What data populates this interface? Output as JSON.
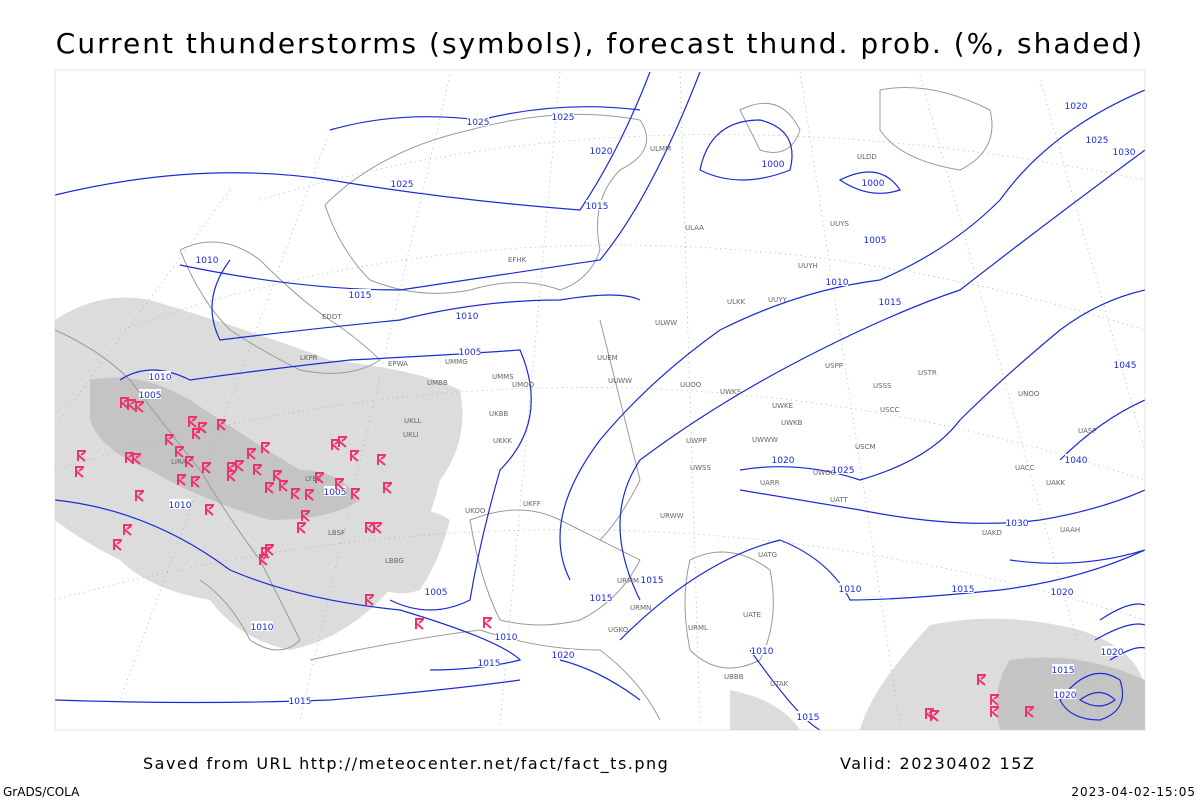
{
  "header": {
    "title": "Current thunderstorms (symbols), forecast thund. prob. (%, shaded)"
  },
  "footer": {
    "source": "Saved from URL http://meteocenter.net/fact/fact_ts.png",
    "valid": "Valid: 20230402 15Z",
    "software": "GrADS/COLA",
    "timestamp": "2023-04-02-15:05"
  },
  "isobar_labels": [
    "1025",
    "1025",
    "1020",
    "1025",
    "1015",
    "1010",
    "1015",
    "1010",
    "1005",
    "1010",
    "1005",
    "1010",
    "1005",
    "1005",
    "1010",
    "1010",
    "1015",
    "1020",
    "1015",
    "1015",
    "1015",
    "1010",
    "1015",
    "1010",
    "1015",
    "1020",
    "1020",
    "1025",
    "1030",
    "1040",
    "1015",
    "1010",
    "1005",
    "1000",
    "1000",
    "1020",
    "1025",
    "1030",
    "1045",
    "1015",
    "1020",
    "1020"
  ],
  "station_labels": [
    "ULMM",
    "ULAA",
    "UUYH",
    "UUYS",
    "ULDD",
    "UUYY",
    "ULKK",
    "ULWW",
    "UUEM",
    "UUWW",
    "UUOO",
    "UWKS",
    "UWKE",
    "UWKB",
    "UWWW",
    "UWPP",
    "UWSS",
    "UWOO",
    "UARR",
    "URWW",
    "USSS",
    "USCC",
    "USCM",
    "UATT",
    "UATG",
    "UATE",
    "UTAK",
    "UBBB",
    "URML",
    "URMM",
    "URMN",
    "UGKO",
    "USPP",
    "USTR",
    "UNOO",
    "UACC",
    "UAKK",
    "UAKD",
    "UAAH",
    "UASP",
    "LIRA",
    "LYBE",
    "LBSF",
    "LBBG",
    "LKPR",
    "EPWA",
    "EDDT",
    "EFHK",
    "UMMG",
    "UMMS",
    "UMOO",
    "UMBB",
    "UKLL",
    "UKLI",
    "UKBB",
    "UKKK",
    "UKOO",
    "UKFF"
  ]
}
